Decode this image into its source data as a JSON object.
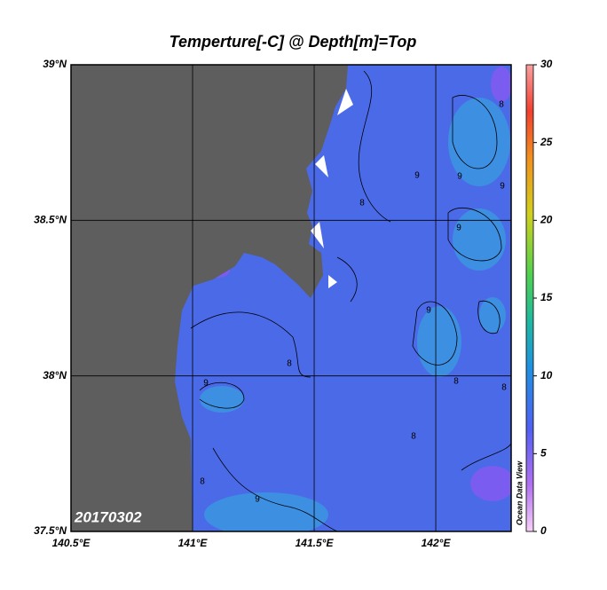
{
  "title": "Temperture[-C] @ Depth[m]=Top",
  "map": {
    "lonlim": [
      140.5,
      142.31
    ],
    "latlim": [
      37.5,
      39
    ],
    "lon_ticks": [
      {
        "value": 140.5,
        "label": "140.5°E"
      },
      {
        "value": 141,
        "label": "141°E"
      },
      {
        "value": 141.5,
        "label": "141.5°E"
      },
      {
        "value": 142,
        "label": "142°E"
      }
    ],
    "lat_ticks": [
      {
        "value": 37.5,
        "label": "37.5°N"
      },
      {
        "value": 38,
        "label": "38°N"
      },
      {
        "value": 38.5,
        "label": "38.5°N"
      },
      {
        "value": 39,
        "label": "39°N"
      }
    ],
    "contour_labels": [
      "9",
      "9",
      "8",
      "9",
      "9",
      "8",
      "8",
      "9",
      "8",
      "8",
      "8",
      "8",
      "9",
      "9"
    ]
  },
  "colorbar": {
    "range": [
      0,
      30
    ],
    "ticks": [
      0,
      5,
      10,
      15,
      20,
      25,
      30
    ]
  },
  "date_label": "20170302",
  "watermark": "Ocean Data View"
}
